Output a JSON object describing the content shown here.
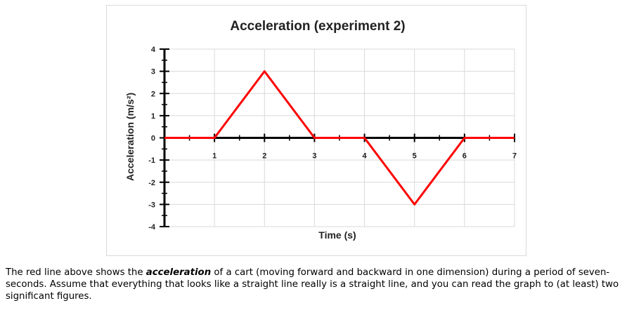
{
  "chart_data": {
    "type": "line",
    "title": "Acceleration (experiment 2)",
    "xlabel": "Time (s)",
    "ylabel": "Acceleration (m/s²)",
    "xlim": [
      0,
      7
    ],
    "ylim": [
      -4,
      4
    ],
    "x_ticks": [
      1,
      2,
      3,
      4,
      5,
      6,
      7
    ],
    "y_ticks": [
      4,
      3,
      2,
      1,
      0,
      -1,
      -2,
      -3,
      -4
    ],
    "grid": true,
    "series": [
      {
        "color": "#ff0000",
        "x": [
          0,
          1,
          2,
          3,
          4,
          5,
          6,
          7
        ],
        "y": [
          0,
          0,
          3,
          0,
          0,
          -3,
          0,
          0
        ]
      }
    ]
  },
  "caption": {
    "before": "The red line above shows the ",
    "emphasis": "acceleration",
    "after": " of a cart (moving forward and backward in one dimension) during a period of seven-seconds. Assume that everything that looks like a straight line really is a straight line, and you can read the graph to (at least) two significant figures."
  }
}
